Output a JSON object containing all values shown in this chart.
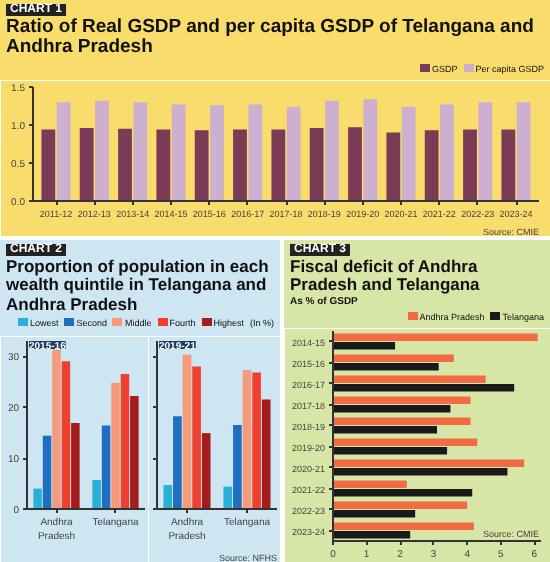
{
  "chart_data": [
    {
      "type": "bar",
      "title": "Ratio of Real GSDP and per capita GSDP of Telangana and Andhra Pradesh",
      "annotations": [
        "CHART 1",
        "Source: CMIE"
      ],
      "categories": [
        "2011-12",
        "2012-13",
        "2013-14",
        "2014-15",
        "2015-16",
        "2016-17",
        "2017-18",
        "2018-19",
        "2019-20",
        "2020-21",
        "2021-22",
        "2022-23",
        "2023-24"
      ],
      "series": [
        {
          "name": "GSDP",
          "color": "#7b3a55",
          "values": [
            0.94,
            0.96,
            0.95,
            0.94,
            0.93,
            0.94,
            0.94,
            0.96,
            0.97,
            0.9,
            0.93,
            0.94,
            0.94
          ]
        },
        {
          "name": "Per capita GSDP",
          "color": "#cdb0cf",
          "values": [
            1.3,
            1.32,
            1.3,
            1.27,
            1.26,
            1.27,
            1.24,
            1.32,
            1.34,
            1.24,
            1.27,
            1.3,
            1.3
          ]
        }
      ],
      "ylim": [
        0,
        1.5
      ],
      "yticks": [
        {
          "value": 0,
          "label": "0.0"
        },
        {
          "value": 0.5,
          "label": "0.5"
        },
        {
          "value": 1,
          "label": "1.0"
        },
        {
          "value": 1.5,
          "label": "1.5"
        }
      ],
      "legend": "top right"
    },
    {
      "type": "bar",
      "title": "Proportion of population in each wealth quintile in Telangana and Andhra Pradesh",
      "subtitle": "2015-16",
      "ylabel": "(In %)",
      "annotations": [
        "CHART 2"
      ],
      "categories": [
        "Andhra Pradesh",
        "Telangana"
      ],
      "series": [
        {
          "name": "Lowest",
          "color": "#2ab0d8",
          "values": [
            4,
            5.7
          ]
        },
        {
          "name": "Second",
          "color": "#1f6fc0",
          "values": [
            14.4,
            16.4
          ]
        },
        {
          "name": "Middle",
          "color": "#f59a7a",
          "values": [
            31.3,
            24.8
          ]
        },
        {
          "name": "Fourth",
          "color": "#ee4030",
          "values": [
            29,
            26.5
          ]
        },
        {
          "name": "Highest",
          "color": "#a51c1c",
          "values": [
            16.9,
            22.2
          ]
        }
      ],
      "ylim": [
        0,
        33
      ],
      "yticks": [
        0,
        10,
        20,
        30
      ],
      "legend": "top"
    },
    {
      "type": "bar",
      "subtitle": "2019-21",
      "annotations": [
        "Source: NFHS"
      ],
      "categories": [
        "Andhra Pradesh",
        "Telangana"
      ],
      "series": [
        {
          "color": "#2ab0d8",
          "values": [
            4.7,
            4.4
          ]
        },
        {
          "color": "#1f6fc0",
          "values": [
            18.2,
            16.5
          ]
        },
        {
          "color": "#f59a7a",
          "values": [
            30.3,
            27.3
          ]
        },
        {
          "color": "#ee4030",
          "values": [
            28,
            26.8
          ]
        },
        {
          "color": "#a51c1c",
          "values": [
            14.9,
            21.5
          ]
        }
      ],
      "ylim": [
        0,
        33
      ],
      "yticks": [
        0,
        10,
        20,
        30
      ],
      "tick_labels": "x"
    },
    {
      "type": "bar",
      "orientation": "horizontal",
      "title": "Fiscal deficit of Andhra Pradesh and Telangana",
      "subtitle": "As % of GSDP",
      "annotations": [
        "CHART 3",
        "Source: CMIE"
      ],
      "categories": [
        "2014-15",
        "2015-16",
        "2016-17",
        "2017-18",
        "2018-19",
        "2019-20",
        "2020-21",
        "2021-22",
        "2022-23",
        "2023-24"
      ],
      "series": [
        {
          "name": "Andhra Pradesh",
          "color": "#f26b43",
          "values": [
            6.1,
            3.6,
            4.55,
            4.1,
            4.1,
            4.3,
            5.7,
            2.2,
            4.0,
            4.2
          ]
        },
        {
          "name": "Telangana",
          "color": "#1a1a1a",
          "values": [
            1.85,
            3.15,
            5.4,
            3.5,
            3.1,
            3.4,
            5.2,
            4.15,
            2.45,
            2.3
          ]
        }
      ],
      "xlim": [
        0,
        6.2
      ],
      "xticks": [
        0,
        1,
        2,
        3,
        4,
        5,
        6
      ],
      "legend": "top right"
    }
  ]
}
